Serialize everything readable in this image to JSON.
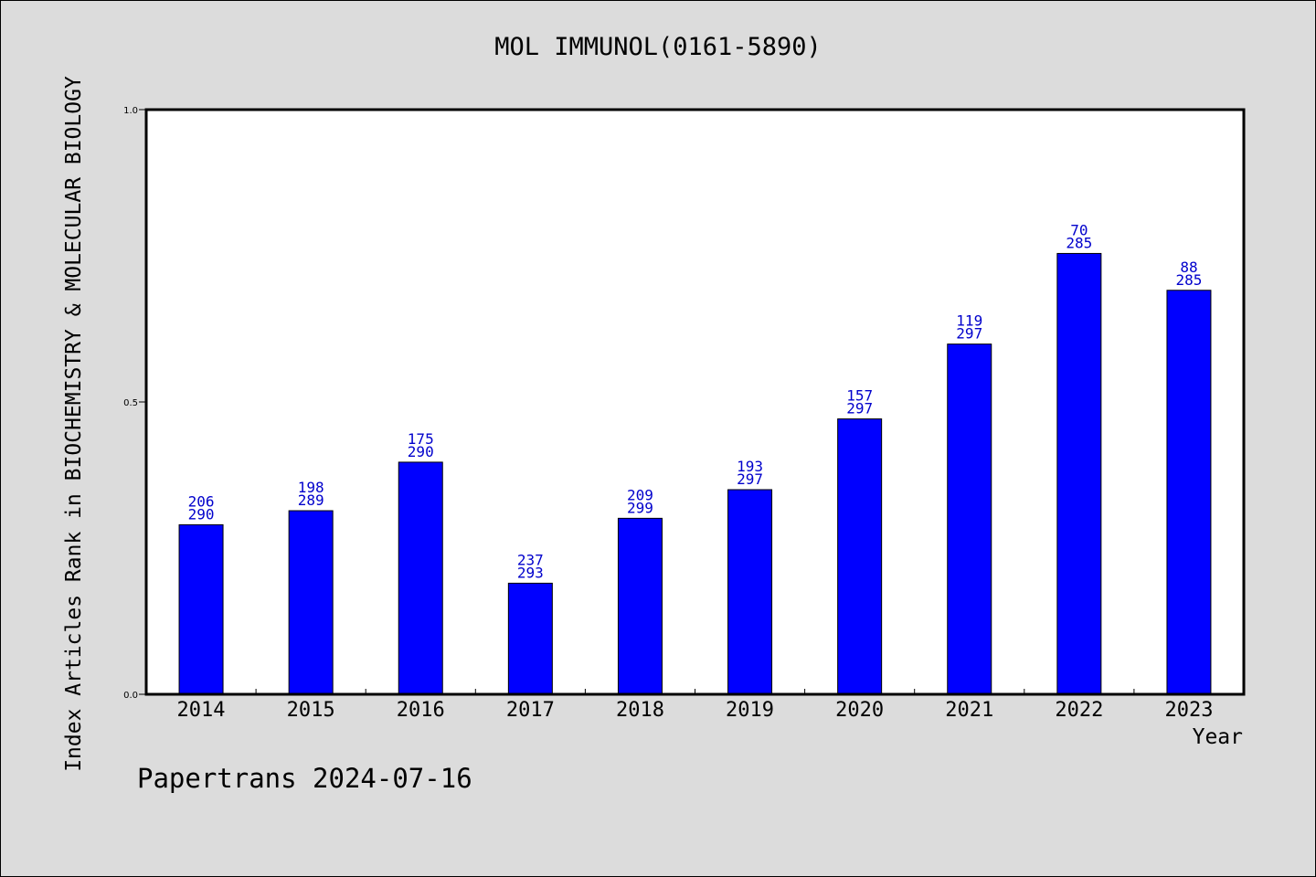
{
  "chart_data": {
    "type": "bar",
    "title": "MOL IMMUNOL(0161-5890)",
    "xlabel": "Year",
    "ylabel": "Index Articles Rank in BIOCHEMISTRY & MOLECULAR BIOLOGY",
    "ylim": [
      0,
      1
    ],
    "yticks": [
      "0.0",
      "0.5",
      "1.0"
    ],
    "categories": [
      "2014",
      "2015",
      "2016",
      "2017",
      "2018",
      "2019",
      "2020",
      "2021",
      "2022",
      "2023"
    ],
    "values": [
      0.29,
      0.314,
      0.397,
      0.19,
      0.301,
      0.35,
      0.471,
      0.599,
      0.754,
      0.691
    ],
    "rank_labels": [
      "206",
      "198",
      "175",
      "237",
      "209",
      "193",
      "157",
      "119",
      "70",
      "88"
    ],
    "total_labels": [
      "290",
      "289",
      "290",
      "293",
      "299",
      "297",
      "297",
      "297",
      "285",
      "285"
    ],
    "bar_color": "#0000ff",
    "label_color": "#0000cc",
    "grid": false
  },
  "footer": "Papertrans 2024-07-16"
}
